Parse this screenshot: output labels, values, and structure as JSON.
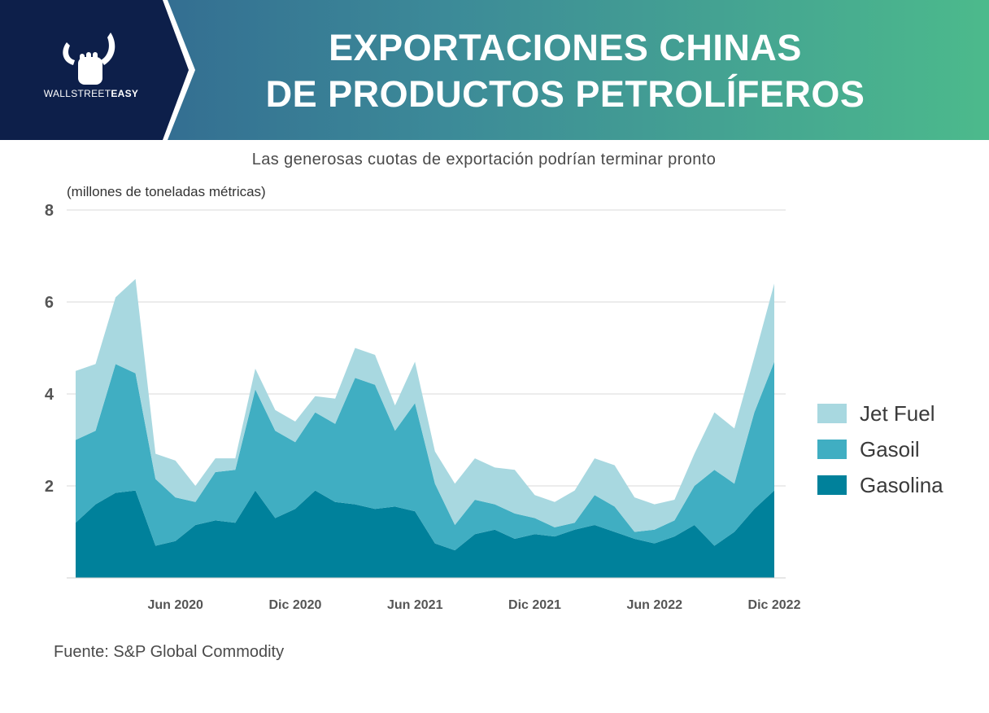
{
  "header": {
    "title_line1": "EXPORTACIONES CHINAS",
    "title_line2": "DE PRODUCTOS PETROLÍFEROS",
    "logo_text_light": "WALLSTREET",
    "logo_text_bold": "EASY",
    "background_start": "#2f5e8e",
    "background_end": "#4cba8c",
    "logo_panel_color": "#0d1f4a"
  },
  "source": "Fuente: S&P Global Commodity",
  "chart_data": {
    "type": "area",
    "stacked": true,
    "title": "Las generosas cuotas de exportación podrían terminar pronto",
    "ylabel": "(millones de toneladas métricas)",
    "xlabel": "",
    "ylim": [
      0,
      8
    ],
    "yticks": [
      2,
      4,
      6,
      8
    ],
    "grid": true,
    "legend_position": "right",
    "x": [
      "2020-01",
      "2020-02",
      "2020-03",
      "2020-04",
      "2020-05",
      "2020-06",
      "2020-07",
      "2020-08",
      "2020-09",
      "2020-10",
      "2020-11",
      "2020-12",
      "2021-01",
      "2021-02",
      "2021-03",
      "2021-04",
      "2021-05",
      "2021-06",
      "2021-07",
      "2021-08",
      "2021-09",
      "2021-10",
      "2021-11",
      "2021-12",
      "2022-01",
      "2022-02",
      "2022-03",
      "2022-04",
      "2022-05",
      "2022-06",
      "2022-07",
      "2022-08",
      "2022-09",
      "2022-10",
      "2022-11",
      "2022-12"
    ],
    "x_tick_labels": [
      {
        "at": "2020-06",
        "label": "Jun 2020"
      },
      {
        "at": "2020-12",
        "label": "Dic 2020"
      },
      {
        "at": "2021-06",
        "label": "Jun 2021"
      },
      {
        "at": "2021-12",
        "label": "Dic 2021"
      },
      {
        "at": "2022-06",
        "label": "Jun 2022"
      },
      {
        "at": "2022-12",
        "label": "Dic 2022"
      }
    ],
    "series": [
      {
        "name": "Gasolina",
        "color": "#00819b",
        "values": [
          1.2,
          1.6,
          1.85,
          1.9,
          0.7,
          0.8,
          1.15,
          1.25,
          1.2,
          1.9,
          1.3,
          1.5,
          1.9,
          1.65,
          1.6,
          1.5,
          1.55,
          1.45,
          0.75,
          0.6,
          0.95,
          1.05,
          0.85,
          0.95,
          0.9,
          1.05,
          1.15,
          1.0,
          0.85,
          0.75,
          0.9,
          1.15,
          0.7,
          1.0,
          1.5,
          1.9
        ]
      },
      {
        "name": "Gasoil",
        "color": "#40aec2",
        "values": [
          1.8,
          1.6,
          2.8,
          2.55,
          1.45,
          0.95,
          0.5,
          1.05,
          1.15,
          2.2,
          1.9,
          1.45,
          1.7,
          1.7,
          2.75,
          2.7,
          1.65,
          2.35,
          1.3,
          0.55,
          0.75,
          0.55,
          0.55,
          0.35,
          0.2,
          0.15,
          0.65,
          0.55,
          0.15,
          0.3,
          0.35,
          0.85,
          1.65,
          1.05,
          2.1,
          2.8
        ]
      },
      {
        "name": "Jet Fuel",
        "color": "#a8d8e0",
        "values": [
          1.5,
          1.45,
          1.45,
          2.05,
          0.55,
          0.8,
          0.35,
          0.3,
          0.25,
          0.45,
          0.45,
          0.45,
          0.35,
          0.55,
          0.65,
          0.65,
          0.55,
          0.9,
          0.7,
          0.9,
          0.9,
          0.8,
          0.95,
          0.5,
          0.55,
          0.7,
          0.8,
          0.9,
          0.75,
          0.55,
          0.45,
          0.7,
          1.25,
          1.2,
          1.2,
          1.7
        ]
      }
    ]
  }
}
